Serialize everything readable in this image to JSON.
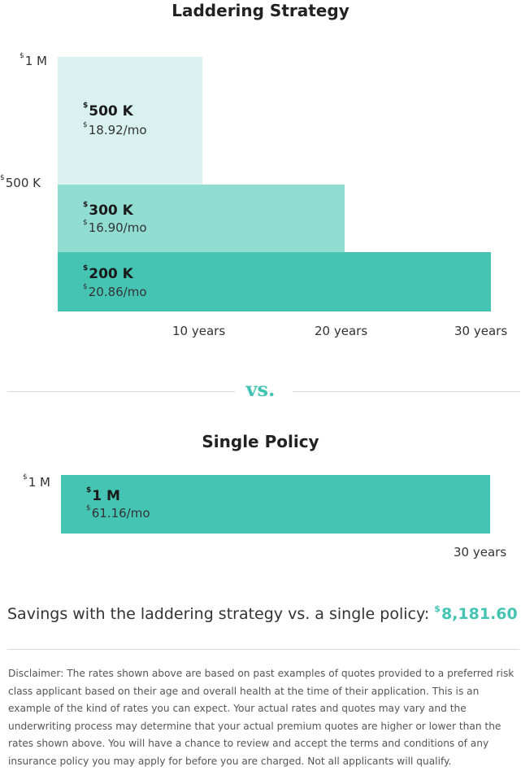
{
  "colors": {
    "tier_500k": "#daf2ef",
    "tier_300k": "#91ddd2",
    "tier_200k": "#45c4b3",
    "single": "#45c4b3",
    "accent": "#45c4b3"
  },
  "laddering": {
    "title": "Laddering Strategy",
    "y_labels": [
      {
        "currency": "$",
        "text": "1 M"
      },
      {
        "currency": "$",
        "text": "500 K"
      }
    ],
    "x_labels": [
      "10 years",
      "20 years",
      "30 years"
    ],
    "tiers": [
      {
        "currency": "$",
        "amount": "500 K",
        "rate": "18.92/mo"
      },
      {
        "currency": "$",
        "amount": "300 K",
        "rate": "16.90/mo"
      },
      {
        "currency": "$",
        "amount": "200 K",
        "rate": "20.86/mo"
      }
    ]
  },
  "vs_label": "vs.",
  "single": {
    "title": "Single Policy",
    "y_label": {
      "currency": "$",
      "text": "1 M"
    },
    "x_label": "30 years",
    "amount_currency": "$",
    "amount": "1 M",
    "rate": "61.16/mo"
  },
  "savings": {
    "text": "Savings with the laddering strategy vs. a single policy:",
    "currency": "$",
    "value": "8,181.60"
  },
  "disclaimer": "Disclaimer: The rates shown above are based on past examples of quotes provided to a preferred risk class applicant based on their age and overall health at the time of their application. This is an example of the kind of rates you can expect. Your actual rates and quotes may vary and the underwriting process may determine that your actual premium quotes are higher or lower than the rates shown above. You will have a chance to review and accept the terms and conditions of any insurance policy you may apply for before you are charged. Not all applicants will qualify.",
  "chart_data": [
    {
      "type": "bar",
      "title": "Laddering Strategy",
      "xlabel": "",
      "ylabel": "",
      "x_ticks": [
        "10 years",
        "20 years",
        "30 years"
      ],
      "y_ticks": [
        "$1 M",
        "$500 K"
      ],
      "series": [
        {
          "name": "$500 K",
          "coverage_k": 500,
          "term_years": 10,
          "monthly_rate": 18.92
        },
        {
          "name": "$300 K",
          "coverage_k": 300,
          "term_years": 20,
          "monthly_rate": 16.9
        },
        {
          "name": "$200 K",
          "coverage_k": 200,
          "term_years": 30,
          "monthly_rate": 20.86
        }
      ]
    },
    {
      "type": "bar",
      "title": "Single Policy",
      "xlabel": "",
      "ylabel": "",
      "x_ticks": [
        "30 years"
      ],
      "y_ticks": [
        "$1 M"
      ],
      "series": [
        {
          "name": "$1 M",
          "coverage_k": 1000,
          "term_years": 30,
          "monthly_rate": 61.16
        }
      ]
    }
  ]
}
